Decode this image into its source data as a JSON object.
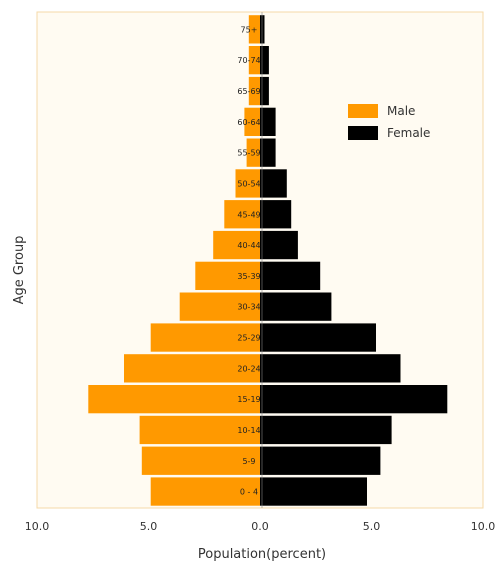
{
  "chart_data": {
    "type": "bar",
    "orientation": "horizontal",
    "variant": "population-pyramid",
    "xlabel": "Population(percent)",
    "ylabel": "Age Group",
    "xlim": [
      -10,
      10
    ],
    "xticks": [
      "10.0",
      "5.0",
      "0.0",
      "5.0",
      "10.0"
    ],
    "categories": [
      "0 - 4",
      "5-9",
      "10-14",
      "15-19",
      "20-24",
      "25-29",
      "30-34",
      "35-39",
      "40-44",
      "45-49",
      "50-54",
      "55-59",
      "60-64",
      "65-69",
      "70-74",
      "75+"
    ],
    "series": [
      {
        "name": "Male",
        "color": "#ff9900",
        "values": [
          4.9,
          5.3,
          5.4,
          7.7,
          6.1,
          4.9,
          3.6,
          2.9,
          2.1,
          1.6,
          1.1,
          0.6,
          0.7,
          0.5,
          0.5,
          0.5
        ]
      },
      {
        "name": "Female",
        "color": "#000000",
        "values": [
          4.8,
          5.4,
          5.9,
          8.4,
          6.3,
          5.2,
          3.2,
          2.7,
          1.7,
          1.4,
          1.2,
          0.7,
          0.7,
          0.4,
          0.4,
          0.2
        ]
      }
    ],
    "legend_position": "top-right",
    "grid": false
  }
}
